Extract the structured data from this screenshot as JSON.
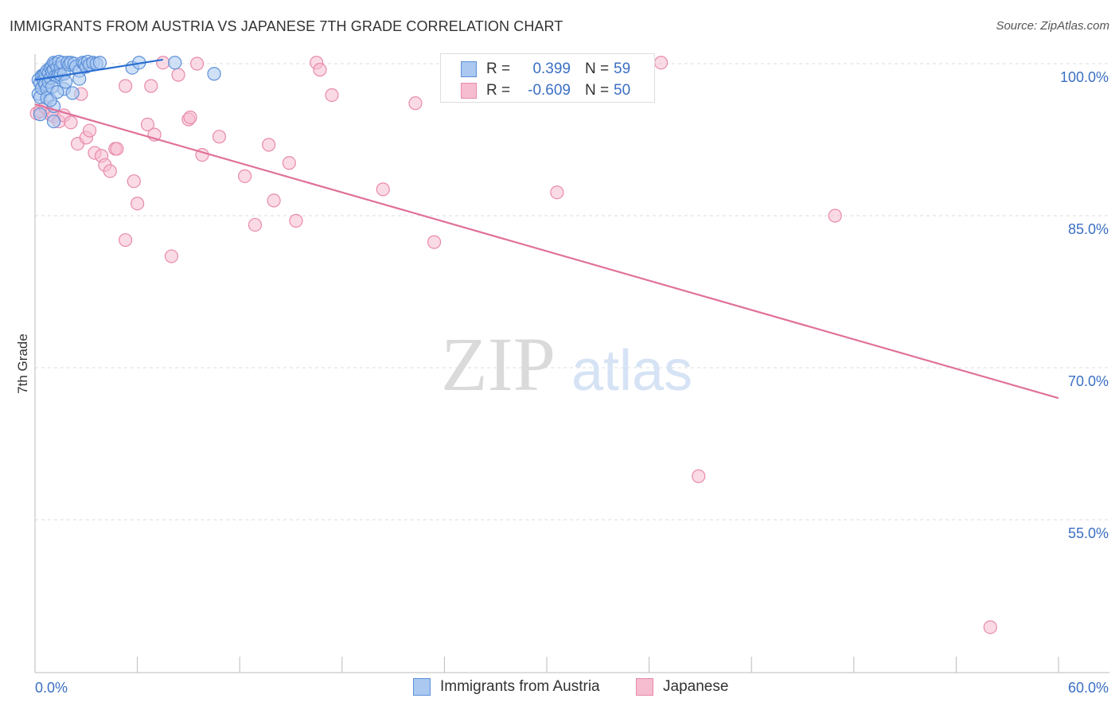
{
  "title": "IMMIGRANTS FROM AUSTRIA VS JAPANESE 7TH GRADE CORRELATION CHART",
  "source": "Source: ZipAtlas.com",
  "watermark": {
    "zip": "ZIP",
    "atlas": "atlas"
  },
  "colors": {
    "blue_fill": "#aac8f0",
    "blue_stroke": "#5b8fd8",
    "blue_line": "#2a6fd1",
    "pink_fill": "#f6bccf",
    "pink_stroke": "#e88aab",
    "pink_line": "#e0709a",
    "axis_label": "#3b6fc4",
    "grid": "#dddddd"
  },
  "legend": {
    "austria": {
      "r_label": "R =",
      "r_value": "0.399",
      "n_label": "N =",
      "n_value": "59"
    },
    "japanese": {
      "r_label": "R =",
      "r_value": "-0.609",
      "n_label": "N =",
      "n_value": "50"
    }
  },
  "chart_data": {
    "type": "scatter",
    "title": "IMMIGRANTS FROM AUSTRIA VS JAPANESE 7TH GRADE CORRELATION CHART",
    "ylabel": "7th Grade",
    "xlabel": "",
    "xlim": [
      0,
      60
    ],
    "ylim": [
      42,
      102
    ],
    "x_tick_labels": [
      "0.0%",
      "60.0%"
    ],
    "y_tick_values": [
      55,
      70,
      85,
      100
    ],
    "y_tick_labels": [
      "55.0%",
      "70.0%",
      "85.0%",
      "100.0%"
    ],
    "grid": true,
    "legend_position": "bottom",
    "series": [
      {
        "name": "Immigrants from Austria",
        "r": 0.399,
        "n": 59,
        "trend": {
          "x": [
            0,
            7.5
          ],
          "y": [
            98.4,
            100.4
          ]
        },
        "points": [
          [
            0.2,
            98.4
          ],
          [
            0.2,
            97.0
          ],
          [
            0.3,
            98.1
          ],
          [
            0.3,
            96.7
          ],
          [
            0.3,
            95.0
          ],
          [
            0.4,
            98.8
          ],
          [
            0.4,
            97.6
          ],
          [
            0.5,
            98.9
          ],
          [
            0.5,
            98.3
          ],
          [
            0.6,
            99.0
          ],
          [
            0.6,
            98.0
          ],
          [
            0.7,
            99.3
          ],
          [
            0.7,
            97.5
          ],
          [
            0.7,
            96.6
          ],
          [
            0.8,
            99.1
          ],
          [
            0.8,
            98.2
          ],
          [
            0.9,
            99.6
          ],
          [
            0.9,
            98.6
          ],
          [
            1.0,
            99.8
          ],
          [
            1.0,
            99.2
          ],
          [
            1.1,
            100.1
          ],
          [
            1.1,
            99.4
          ],
          [
            1.1,
            94.3
          ],
          [
            1.2,
            100.0
          ],
          [
            1.2,
            98.8
          ],
          [
            1.3,
            99.6
          ],
          [
            1.3,
            98.7
          ],
          [
            1.4,
            100.2
          ],
          [
            1.4,
            99.0
          ],
          [
            1.5,
            99.6
          ],
          [
            1.5,
            98.9
          ],
          [
            1.6,
            100.1
          ],
          [
            1.7,
            99.0
          ],
          [
            1.7,
            97.5
          ],
          [
            1.8,
            98.2
          ],
          [
            1.9,
            100.1
          ],
          [
            2.0,
            99.9
          ],
          [
            2.1,
            100.1
          ],
          [
            2.2,
            97.1
          ],
          [
            2.3,
            100.0
          ],
          [
            2.4,
            99.7
          ],
          [
            2.6,
            99.3
          ],
          [
            2.6,
            98.5
          ],
          [
            2.8,
            100.1
          ],
          [
            2.9,
            100.0
          ],
          [
            3.0,
            99.7
          ],
          [
            3.1,
            100.2
          ],
          [
            3.2,
            99.9
          ],
          [
            3.4,
            100.1
          ],
          [
            3.6,
            100.0
          ],
          [
            3.8,
            100.1
          ],
          [
            5.7,
            99.6
          ],
          [
            6.1,
            100.1
          ],
          [
            8.2,
            100.1
          ],
          [
            10.5,
            99.0
          ],
          [
            1.1,
            95.8
          ],
          [
            0.9,
            96.4
          ],
          [
            1.0,
            97.7
          ],
          [
            1.3,
            97.2
          ]
        ]
      },
      {
        "name": "Japanese",
        "r": -0.609,
        "n": 50,
        "trend": {
          "x": [
            0,
            60
          ],
          "y": [
            96.0,
            67.0
          ]
        },
        "points": [
          [
            0.1,
            95.1
          ],
          [
            0.3,
            95.3
          ],
          [
            0.6,
            95.7
          ],
          [
            0.9,
            95.0
          ],
          [
            1.1,
            94.8
          ],
          [
            1.4,
            94.3
          ],
          [
            1.7,
            94.9
          ],
          [
            2.1,
            94.2
          ],
          [
            2.5,
            92.1
          ],
          [
            2.7,
            97.0
          ],
          [
            3.0,
            92.7
          ],
          [
            3.2,
            93.4
          ],
          [
            3.5,
            91.2
          ],
          [
            3.9,
            90.9
          ],
          [
            4.1,
            90.0
          ],
          [
            4.4,
            89.4
          ],
          [
            4.7,
            91.6
          ],
          [
            4.8,
            91.6
          ],
          [
            5.3,
            97.8
          ],
          [
            5.8,
            88.4
          ],
          [
            6.0,
            86.2
          ],
          [
            5.3,
            82.6
          ],
          [
            6.6,
            94.0
          ],
          [
            6.8,
            97.8
          ],
          [
            7.0,
            93.0
          ],
          [
            7.5,
            100.1
          ],
          [
            8.0,
            81.0
          ],
          [
            8.4,
            98.9
          ],
          [
            9.0,
            94.5
          ],
          [
            9.1,
            94.7
          ],
          [
            9.5,
            100.0
          ],
          [
            9.8,
            91.0
          ],
          [
            10.8,
            92.8
          ],
          [
            12.3,
            88.9
          ],
          [
            12.9,
            84.1
          ],
          [
            13.7,
            92.0
          ],
          [
            14.0,
            86.5
          ],
          [
            14.9,
            90.2
          ],
          [
            15.3,
            84.5
          ],
          [
            16.5,
            100.1
          ],
          [
            16.7,
            99.4
          ],
          [
            17.4,
            96.9
          ],
          [
            20.4,
            87.6
          ],
          [
            22.3,
            96.1
          ],
          [
            23.4,
            82.4
          ],
          [
            30.6,
            87.3
          ],
          [
            36.7,
            100.1
          ],
          [
            46.9,
            85.0
          ],
          [
            38.9,
            59.3
          ],
          [
            56.0,
            44.4
          ]
        ]
      }
    ]
  },
  "legend_bottom": {
    "austria": "Immigrants from Austria",
    "japanese": "Japanese"
  }
}
